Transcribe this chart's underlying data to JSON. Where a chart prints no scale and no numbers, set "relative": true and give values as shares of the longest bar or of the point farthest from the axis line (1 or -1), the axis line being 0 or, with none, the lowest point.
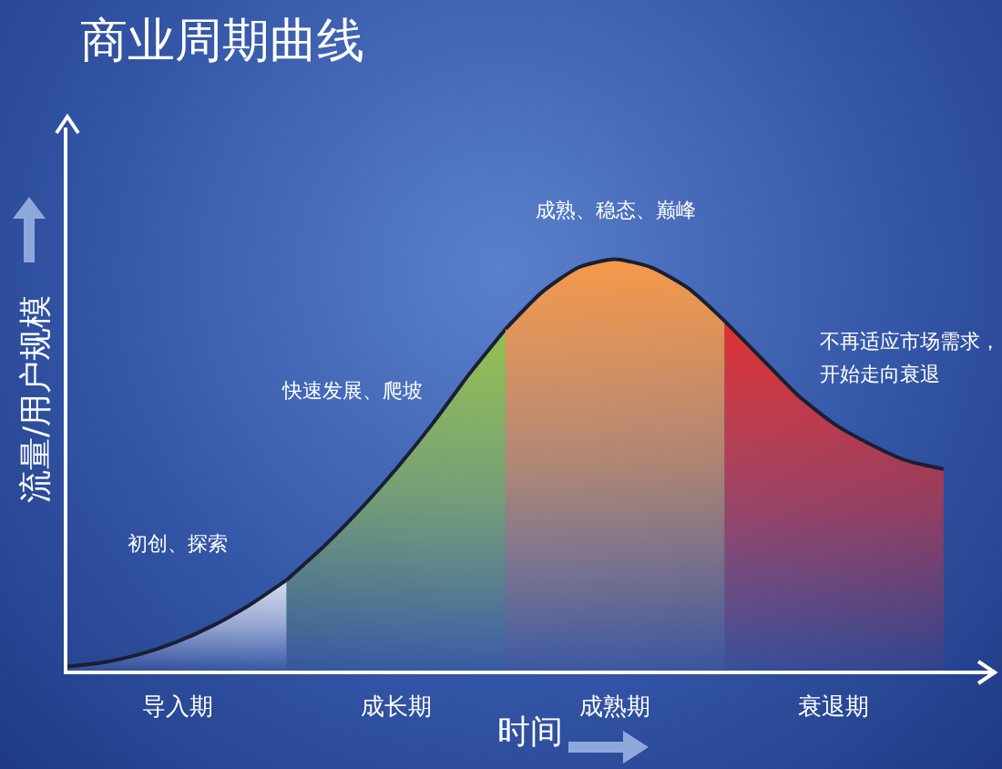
{
  "chart_data": {
    "type": "area",
    "title": "商业周期曲线",
    "xlabel": "时间",
    "ylabel": "流量/用户规模",
    "relative": true,
    "legend": false,
    "grid": false,
    "categories": [
      null,
      null,
      null,
      null,
      null,
      null,
      null,
      null,
      null,
      null,
      null,
      null,
      null,
      null,
      null,
      null,
      null,
      null,
      null,
      null,
      null,
      null,
      null,
      null,
      null
    ],
    "series": [
      {
        "name": "导入期",
        "color": "#d8def0",
        "values": [
          0.01,
          0.02,
          0.04,
          0.07,
          0.11,
          0.16,
          0.22,
          null,
          null,
          null,
          null,
          null,
          null,
          null,
          null,
          null,
          null,
          null,
          null,
          null,
          null,
          null,
          null,
          null,
          null
        ]
      },
      {
        "name": "成长期",
        "color": "#94c050",
        "values": [
          null,
          null,
          null,
          null,
          null,
          null,
          0.22,
          0.3,
          0.39,
          0.49,
          0.6,
          0.72,
          0.83,
          null,
          null,
          null,
          null,
          null,
          null,
          null,
          null,
          null,
          null,
          null,
          null
        ]
      },
      {
        "name": "成熟期",
        "color": "#f5994a",
        "values": [
          null,
          null,
          null,
          null,
          null,
          null,
          null,
          null,
          null,
          null,
          null,
          null,
          0.83,
          0.92,
          0.98,
          1,
          0.98,
          0.93,
          0.85,
          null,
          null,
          null,
          null,
          null,
          null
        ]
      },
      {
        "name": "衰退期",
        "color": "#e03232",
        "values": [
          null,
          null,
          null,
          null,
          null,
          null,
          null,
          null,
          null,
          null,
          null,
          null,
          null,
          null,
          null,
          null,
          null,
          null,
          0.85,
          0.76,
          0.67,
          0.6,
          0.55,
          0.51,
          0.49
        ]
      }
    ],
    "annotations": [
      "初创、探索",
      "快速发展、爬坡",
      "成熟、稳态、巅峰",
      "不再适应市场需求，",
      "开始走向衰退"
    ]
  }
}
